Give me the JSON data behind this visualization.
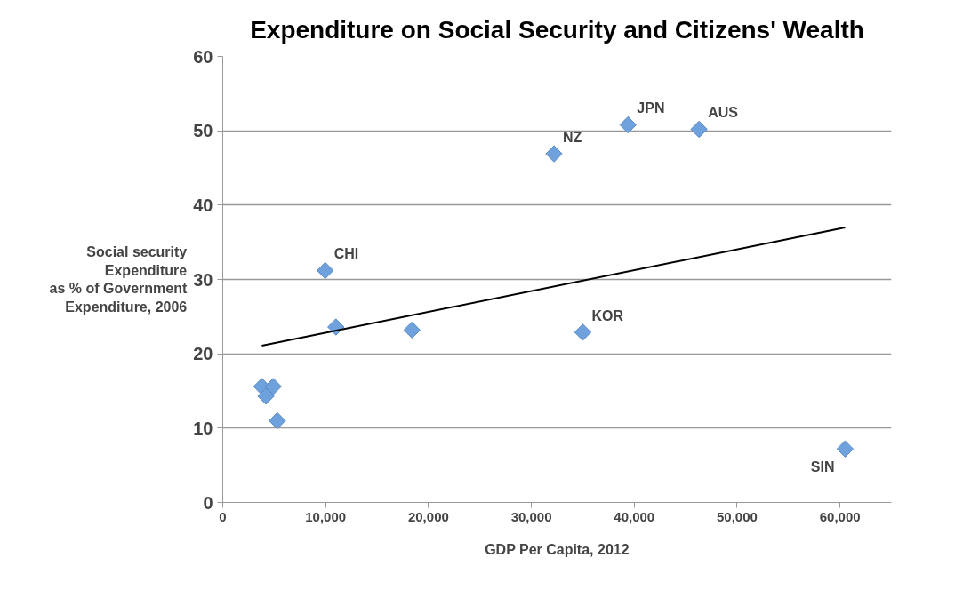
{
  "chart_data": {
    "type": "scatter",
    "title": "Expenditure on Social Security and Citizens' Wealth",
    "xlabel": "GDP Per Capita, 2012",
    "ylabel": "Social security\nExpenditure\nas % of Government\nExpenditure, 2006",
    "series": [
      {
        "color": "#6fa1dc",
        "x": [
          3800,
          4200,
          4900,
          5300,
          9960,
          11000,
          18400,
          32200,
          35000,
          39400,
          46300,
          60500
        ],
        "values": [
          15.6,
          14.3,
          15.6,
          11.0,
          31.2,
          23.6,
          23.2,
          46.9,
          22.9,
          50.8,
          50.2,
          7.2
        ]
      },
      {
        "type": "line",
        "marker": "none",
        "color": "#000000",
        "x": [
          3800,
          60500
        ],
        "values": [
          21.1,
          37.0
        ]
      }
    ],
    "annotations": [
      {
        "text": "CHI",
        "x": 9960,
        "y": 31.2
      },
      {
        "text": "NZ",
        "x": 32200,
        "y": 46.9
      },
      {
        "text": "JPN",
        "x": 39400,
        "y": 50.8
      },
      {
        "text": "AUS",
        "x": 46300,
        "y": 50.2
      },
      {
        "text": "KOR",
        "x": 35000,
        "y": 22.9
      },
      {
        "text": "SIN",
        "x": 60500,
        "y": 7.2
      }
    ],
    "xlim": [
      0,
      65000
    ],
    "ylim": [
      0,
      60
    ],
    "xticks": [
      0,
      {
        "value": 10000,
        "label": "10,000"
      },
      {
        "value": 20000,
        "label": "20,000"
      },
      {
        "value": 30000,
        "label": "30,000"
      },
      {
        "value": 40000,
        "label": "40,000"
      },
      {
        "value": 50000,
        "label": "50,000"
      },
      {
        "value": 60000,
        "label": "60,000"
      }
    ],
    "yticks": [
      0,
      10,
      20,
      30,
      40,
      50,
      60
    ],
    "grid": "y",
    "marker": "diamond"
  }
}
